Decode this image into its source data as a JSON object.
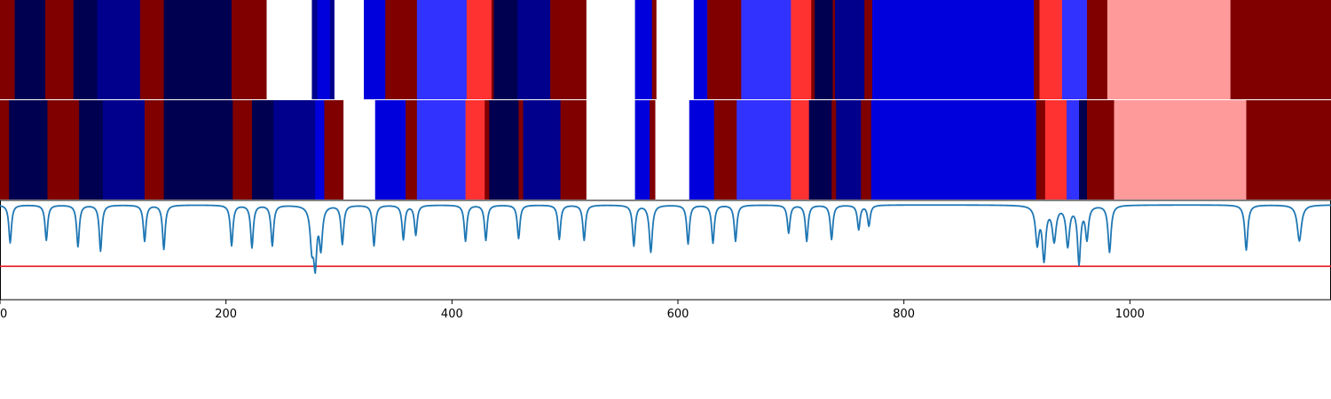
{
  "chart_data": {
    "type": "heatmap",
    "title": "",
    "xlabel": "",
    "ylabel": "",
    "xlim": [
      0,
      1178
    ],
    "x_ticks": [
      0,
      200,
      400,
      600,
      800,
      1000
    ],
    "x_tick_labels": [
      "0",
      "200",
      "400",
      "600",
      "800",
      "1000"
    ],
    "grid": false,
    "colors": {
      "navy": "#000050",
      "darkblue": "#00008c",
      "blue": "#0000dc",
      "lightblue": "#3232ff",
      "white": "#ffffff",
      "red": "#ff3232",
      "pink": "#ff9a9a",
      "darkred": "#800000",
      "line": "#1f77b4",
      "threshold": "#e8141e"
    },
    "rows": [
      {
        "segments": [
          {
            "start": 0,
            "end": 13,
            "color": "darkred"
          },
          {
            "start": 13,
            "end": 40,
            "color": "navy"
          },
          {
            "start": 40,
            "end": 65,
            "color": "darkred"
          },
          {
            "start": 65,
            "end": 86,
            "color": "navy"
          },
          {
            "start": 86,
            "end": 124,
            "color": "darkblue"
          },
          {
            "start": 124,
            "end": 145,
            "color": "darkred"
          },
          {
            "start": 145,
            "end": 205,
            "color": "navy"
          },
          {
            "start": 205,
            "end": 236,
            "color": "darkred"
          },
          {
            "start": 236,
            "end": 276,
            "color": "white"
          },
          {
            "start": 276,
            "end": 281,
            "color": "darkblue"
          },
          {
            "start": 281,
            "end": 292,
            "color": "blue"
          },
          {
            "start": 292,
            "end": 296,
            "color": "darkblue"
          },
          {
            "start": 296,
            "end": 322,
            "color": "white"
          },
          {
            "start": 322,
            "end": 341,
            "color": "blue"
          },
          {
            "start": 341,
            "end": 369,
            "color": "darkred"
          },
          {
            "start": 369,
            "end": 413,
            "color": "lightblue"
          },
          {
            "start": 413,
            "end": 435,
            "color": "red"
          },
          {
            "start": 435,
            "end": 437,
            "color": "darkred"
          },
          {
            "start": 437,
            "end": 458,
            "color": "navy"
          },
          {
            "start": 458,
            "end": 487,
            "color": "darkblue"
          },
          {
            "start": 487,
            "end": 519,
            "color": "darkred"
          },
          {
            "start": 519,
            "end": 562,
            "color": "white"
          },
          {
            "start": 562,
            "end": 577,
            "color": "blue"
          },
          {
            "start": 577,
            "end": 581,
            "color": "darkred"
          },
          {
            "start": 581,
            "end": 614,
            "color": "white"
          },
          {
            "start": 614,
            "end": 626,
            "color": "blue"
          },
          {
            "start": 626,
            "end": 656,
            "color": "darkred"
          },
          {
            "start": 656,
            "end": 700,
            "color": "lightblue"
          },
          {
            "start": 700,
            "end": 718,
            "color": "red"
          },
          {
            "start": 718,
            "end": 721,
            "color": "darkred"
          },
          {
            "start": 721,
            "end": 737,
            "color": "navy"
          },
          {
            "start": 737,
            "end": 739,
            "color": "darkred"
          },
          {
            "start": 739,
            "end": 765,
            "color": "darkblue"
          },
          {
            "start": 765,
            "end": 772,
            "color": "darkred"
          },
          {
            "start": 772,
            "end": 915,
            "color": "blue"
          },
          {
            "start": 915,
            "end": 920,
            "color": "darkred"
          },
          {
            "start": 920,
            "end": 940,
            "color": "red"
          },
          {
            "start": 940,
            "end": 962,
            "color": "lightblue"
          },
          {
            "start": 962,
            "end": 980,
            "color": "darkred"
          },
          {
            "start": 980,
            "end": 1089,
            "color": "pink"
          },
          {
            "start": 1089,
            "end": 1178,
            "color": "darkred"
          }
        ]
      },
      {
        "segments": [
          {
            "start": 0,
            "end": 8,
            "color": "darkred"
          },
          {
            "start": 8,
            "end": 42,
            "color": "navy"
          },
          {
            "start": 42,
            "end": 70,
            "color": "darkred"
          },
          {
            "start": 70,
            "end": 91,
            "color": "navy"
          },
          {
            "start": 91,
            "end": 128,
            "color": "darkblue"
          },
          {
            "start": 128,
            "end": 145,
            "color": "darkred"
          },
          {
            "start": 145,
            "end": 206,
            "color": "navy"
          },
          {
            "start": 206,
            "end": 223,
            "color": "darkred"
          },
          {
            "start": 223,
            "end": 242,
            "color": "navy"
          },
          {
            "start": 242,
            "end": 279,
            "color": "darkblue"
          },
          {
            "start": 279,
            "end": 287,
            "color": "blue"
          },
          {
            "start": 287,
            "end": 304,
            "color": "darkred"
          },
          {
            "start": 304,
            "end": 332,
            "color": "white"
          },
          {
            "start": 332,
            "end": 359,
            "color": "blue"
          },
          {
            "start": 359,
            "end": 369,
            "color": "darkred"
          },
          {
            "start": 369,
            "end": 412,
            "color": "lightblue"
          },
          {
            "start": 412,
            "end": 429,
            "color": "red"
          },
          {
            "start": 429,
            "end": 433,
            "color": "darkred"
          },
          {
            "start": 433,
            "end": 459,
            "color": "navy"
          },
          {
            "start": 459,
            "end": 463,
            "color": "darkred"
          },
          {
            "start": 463,
            "end": 496,
            "color": "darkblue"
          },
          {
            "start": 496,
            "end": 519,
            "color": "darkred"
          },
          {
            "start": 519,
            "end": 562,
            "color": "white"
          },
          {
            "start": 562,
            "end": 575,
            "color": "blue"
          },
          {
            "start": 575,
            "end": 580,
            "color": "darkred"
          },
          {
            "start": 580,
            "end": 610,
            "color": "white"
          },
          {
            "start": 610,
            "end": 632,
            "color": "blue"
          },
          {
            "start": 632,
            "end": 652,
            "color": "darkred"
          },
          {
            "start": 652,
            "end": 700,
            "color": "lightblue"
          },
          {
            "start": 700,
            "end": 716,
            "color": "red"
          },
          {
            "start": 716,
            "end": 736,
            "color": "navy"
          },
          {
            "start": 736,
            "end": 740,
            "color": "darkred"
          },
          {
            "start": 740,
            "end": 762,
            "color": "darkblue"
          },
          {
            "start": 762,
            "end": 771,
            "color": "darkred"
          },
          {
            "start": 771,
            "end": 917,
            "color": "blue"
          },
          {
            "start": 917,
            "end": 925,
            "color": "darkred"
          },
          {
            "start": 925,
            "end": 944,
            "color": "red"
          },
          {
            "start": 944,
            "end": 955,
            "color": "lightblue"
          },
          {
            "start": 955,
            "end": 962,
            "color": "navy"
          },
          {
            "start": 962,
            "end": 986,
            "color": "darkred"
          },
          {
            "start": 986,
            "end": 1103,
            "color": "pink"
          },
          {
            "start": 1103,
            "end": 1178,
            "color": "darkred"
          }
        ]
      }
    ],
    "line_series": {
      "ylim": [
        -1.05,
        0.05
      ],
      "baseline": 0,
      "dips": [
        {
          "x": 9,
          "depth": 0.42,
          "width": 1.4
        },
        {
          "x": 41,
          "depth": 0.39,
          "width": 1.4
        },
        {
          "x": 69,
          "depth": 0.46,
          "width": 1.4
        },
        {
          "x": 89,
          "depth": 0.51,
          "width": 1.4
        },
        {
          "x": 128,
          "depth": 0.4,
          "width": 1.4
        },
        {
          "x": 145,
          "depth": 0.49,
          "width": 1.4
        },
        {
          "x": 205,
          "depth": 0.45,
          "width": 1.4
        },
        {
          "x": 223,
          "depth": 0.47,
          "width": 1.4
        },
        {
          "x": 241,
          "depth": 0.45,
          "width": 1.4
        },
        {
          "x": 276,
          "depth": 0.42,
          "width": 1.8
        },
        {
          "x": 279,
          "depth": 0.6,
          "width": 1.6
        },
        {
          "x": 284,
          "depth": 0.45,
          "width": 1.6
        },
        {
          "x": 303,
          "depth": 0.43,
          "width": 1.4
        },
        {
          "x": 331,
          "depth": 0.45,
          "width": 1.4
        },
        {
          "x": 357,
          "depth": 0.38,
          "width": 1.4
        },
        {
          "x": 368,
          "depth": 0.33,
          "width": 1.4
        },
        {
          "x": 412,
          "depth": 0.4,
          "width": 1.4
        },
        {
          "x": 430,
          "depth": 0.39,
          "width": 1.4
        },
        {
          "x": 459,
          "depth": 0.37,
          "width": 1.4
        },
        {
          "x": 495,
          "depth": 0.38,
          "width": 1.4
        },
        {
          "x": 517,
          "depth": 0.39,
          "width": 1.4
        },
        {
          "x": 561,
          "depth": 0.45,
          "width": 1.4
        },
        {
          "x": 576,
          "depth": 0.52,
          "width": 1.6
        },
        {
          "x": 609,
          "depth": 0.43,
          "width": 1.4
        },
        {
          "x": 631,
          "depth": 0.42,
          "width": 1.4
        },
        {
          "x": 651,
          "depth": 0.4,
          "width": 1.4
        },
        {
          "x": 698,
          "depth": 0.31,
          "width": 1.4
        },
        {
          "x": 714,
          "depth": 0.4,
          "width": 1.4
        },
        {
          "x": 736,
          "depth": 0.38,
          "width": 1.4
        },
        {
          "x": 760,
          "depth": 0.27,
          "width": 1.4
        },
        {
          "x": 769,
          "depth": 0.23,
          "width": 1.4
        },
        {
          "x": 918,
          "depth": 0.41,
          "width": 1.8
        },
        {
          "x": 924,
          "depth": 0.58,
          "width": 1.8
        },
        {
          "x": 933,
          "depth": 0.38,
          "width": 2.0
        },
        {
          "x": 945,
          "depth": 0.44,
          "width": 1.8
        },
        {
          "x": 955,
          "depth": 0.63,
          "width": 1.6
        },
        {
          "x": 962,
          "depth": 0.36,
          "width": 1.6
        },
        {
          "x": 982,
          "depth": 0.52,
          "width": 1.6
        },
        {
          "x": 1103,
          "depth": 0.5,
          "width": 1.6
        },
        {
          "x": 1150,
          "depth": 0.4,
          "width": 2.2
        }
      ]
    },
    "threshold": {
      "value": -0.68
    }
  }
}
